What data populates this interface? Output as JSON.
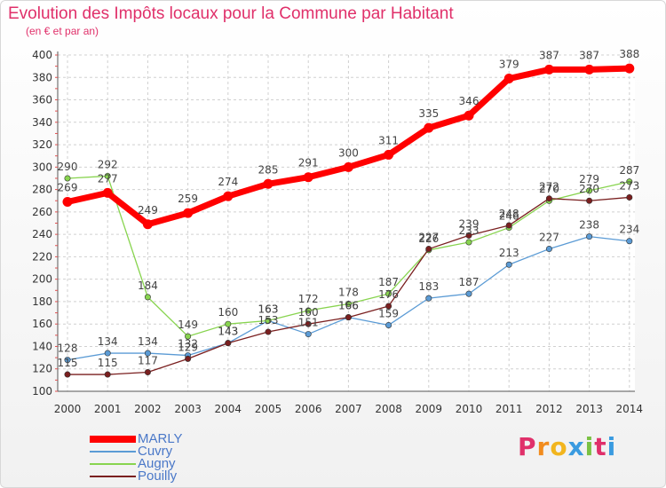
{
  "title": "Evolution des Impôts locaux pour la Commune par Habitant",
  "subtitle": "(en € et par an)",
  "logo": {
    "letters": [
      "P",
      "r",
      "o",
      "x",
      "i",
      "t",
      "i"
    ],
    "colors": [
      "#e0306a",
      "#f28c1e",
      "#f2b51e",
      "#3a9be0",
      "#7ac143",
      "#e0306a",
      "#3a9be0"
    ]
  },
  "chart_data": {
    "type": "line",
    "title": "Evolution des Impôts locaux pour la Commune par Habitant",
    "subtitle": "(en € et par an)",
    "xlabel": "",
    "ylabel": "",
    "x": [
      "2000",
      "2001",
      "2002",
      "2003",
      "2004",
      "2005",
      "2006",
      "2007",
      "2008",
      "2009",
      "2010",
      "2011",
      "2012",
      "2013",
      "2014"
    ],
    "ylim": [
      100,
      400
    ],
    "yticks": [
      100,
      120,
      140,
      160,
      180,
      200,
      220,
      240,
      260,
      280,
      300,
      320,
      340,
      360,
      380,
      400
    ],
    "grid": true,
    "legend_position": "bottom-left",
    "series": [
      {
        "name": "MARLY",
        "color": "#ff0000",
        "values": [
          269,
          277,
          249,
          259,
          274,
          285,
          291,
          300,
          311,
          335,
          346,
          379,
          387,
          387,
          388
        ]
      },
      {
        "name": "Cuvry",
        "color": "#5b9bd5",
        "values": [
          128,
          134,
          134,
          132,
          143,
          163,
          151,
          166,
          159,
          183,
          187,
          213,
          227,
          238,
          234
        ]
      },
      {
        "name": "Augny",
        "color": "#88d44f",
        "values": [
          290,
          292,
          184,
          149,
          160,
          163,
          172,
          178,
          187,
          226,
          233,
          246,
          270,
          279,
          287
        ]
      },
      {
        "name": "Pouilly",
        "color": "#7a1f1f",
        "values": [
          115,
          115,
          117,
          129,
          143,
          153,
          160,
          166,
          176,
          227,
          239,
          248,
          272,
          270,
          273
        ]
      }
    ]
  }
}
